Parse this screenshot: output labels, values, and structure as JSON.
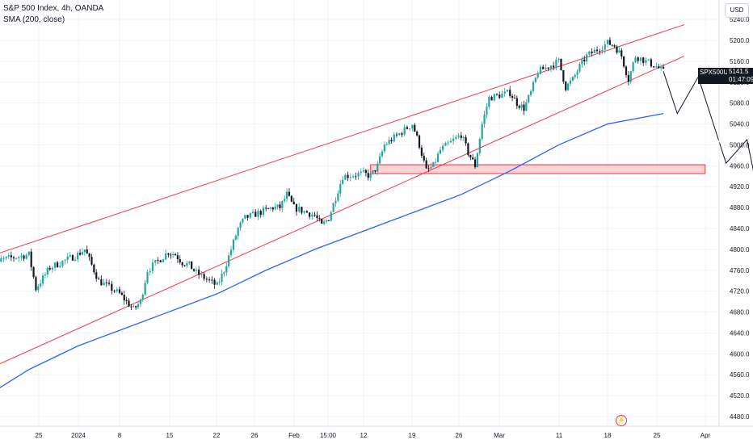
{
  "legend": {
    "title": "S&P 500 Index, 4h, OANDA",
    "indicator": "SMA (200, close)"
  },
  "currency_label": "USD",
  "last_price": {
    "symbol": "SPX500USD",
    "price": "5141.5",
    "countdown": "01:47:09"
  },
  "event_icon": "flash-icon",
  "colors": {
    "up": "#26a69a",
    "down": "#131722",
    "sma": "#2962ff",
    "channel": "#f23645",
    "zone_fill": "#f8c8cc",
    "projection": "#131722"
  },
  "chart_data": {
    "type": "candlestick",
    "title": "S&P 500 Index, 4h, OANDA",
    "y_scale": "linear",
    "ylim": [
      4460,
      5240
    ],
    "y_ticks": [
      4480,
      4520,
      4560,
      4600,
      4640,
      4680,
      4720,
      4760,
      4800,
      4840,
      4880,
      4920,
      4960,
      5000,
      5040,
      5080,
      5120,
      5160,
      5200,
      5240
    ],
    "y_tick_labels": [
      "4480.0",
      "4520.0",
      "4560.0",
      "4600.0",
      "4640.0",
      "4680.0",
      "4720.0",
      "4760.0",
      "4800.0",
      "4840.0",
      "4880.0",
      "4920.0",
      "4960.0",
      "5000.0",
      "5040.0",
      "5080.0",
      "5120.0",
      "5160.0",
      "5200.0",
      "5240.0"
    ],
    "x_tick_labels": [
      "25",
      "2024",
      "8",
      "15",
      "22",
      "26",
      "Feb",
      "15:00",
      "12",
      "19",
      "26",
      "Mar",
      "11",
      "18",
      "25",
      "Apr"
    ],
    "price_path": [
      [
        "2023-12-20",
        4740
      ],
      [
        "2023-12-21",
        4755
      ],
      [
        "2023-12-22",
        4780
      ],
      [
        "2023-12-26",
        4790
      ],
      [
        "2023-12-27",
        4725
      ],
      [
        "2023-12-28",
        4745
      ],
      [
        "2023-12-29",
        4765
      ],
      [
        "2024-01-02",
        4790
      ],
      [
        "2024-01-03",
        4800
      ],
      [
        "2024-01-04",
        4770
      ],
      [
        "2024-01-05",
        4740
      ],
      [
        "2024-01-08",
        4715
      ],
      [
        "2024-01-09",
        4700
      ],
      [
        "2024-01-10",
        4685
      ],
      [
        "2024-01-11",
        4700
      ],
      [
        "2024-01-12",
        4760
      ],
      [
        "2024-01-15",
        4795
      ],
      [
        "2024-01-16",
        4790
      ],
      [
        "2024-01-17",
        4775
      ],
      [
        "2024-01-18",
        4770
      ],
      [
        "2024-01-19",
        4755
      ],
      [
        "2024-01-22",
        4730
      ],
      [
        "2024-01-23",
        4760
      ],
      [
        "2024-01-24",
        4800
      ],
      [
        "2024-01-25",
        4840
      ],
      [
        "2024-01-26",
        4860
      ],
      [
        "2024-01-29",
        4875
      ],
      [
        "2024-01-30",
        4880
      ],
      [
        "2024-01-31",
        4880
      ],
      [
        "2024-02-01",
        4905
      ],
      [
        "2024-02-02",
        4880
      ],
      [
        "2024-02-05",
        4865
      ],
      [
        "2024-02-06",
        4845
      ],
      [
        "2024-02-07",
        4860
      ],
      [
        "2024-02-08",
        4900
      ],
      [
        "2024-02-09",
        4940
      ],
      [
        "2024-02-12",
        4945
      ],
      [
        "2024-02-13",
        4940
      ],
      [
        "2024-02-14",
        4960
      ],
      [
        "2024-02-15",
        5000
      ],
      [
        "2024-02-16",
        5010
      ],
      [
        "2024-02-19",
        5040
      ],
      [
        "2024-02-20",
        5000
      ],
      [
        "2024-02-21",
        4950
      ],
      [
        "2024-02-22",
        4960
      ],
      [
        "2024-02-23",
        4990
      ],
      [
        "2024-02-26",
        5020
      ],
      [
        "2024-02-27",
        4985
      ],
      [
        "2024-02-28",
        4960
      ],
      [
        "2024-02-29",
        5040
      ],
      [
        "2024-03-01",
        5090
      ],
      [
        "2024-03-04",
        5100
      ],
      [
        "2024-03-05",
        5080
      ],
      [
        "2024-03-06",
        5070
      ],
      [
        "2024-03-07",
        5100
      ],
      [
        "2024-03-08",
        5140
      ],
      [
        "2024-03-11",
        5160
      ],
      [
        "2024-03-12",
        5110
      ],
      [
        "2024-03-13",
        5125
      ],
      [
        "2024-03-14",
        5150
      ],
      [
        "2024-03-15",
        5170
      ],
      [
        "2024-03-18",
        5195
      ],
      [
        "2024-03-19",
        5190
      ],
      [
        "2024-03-20",
        5170
      ],
      [
        "2024-03-21",
        5125
      ],
      [
        "2024-03-22",
        5170
      ],
      [
        "2024-03-25",
        5150
      ],
      [
        "2024-03-26",
        5140
      ]
    ],
    "sma_200_path": [
      [
        "2023-12-20",
        4520
      ],
      [
        "2023-12-26",
        4570
      ],
      [
        "2024-01-02",
        4615
      ],
      [
        "2024-01-08",
        4645
      ],
      [
        "2024-01-15",
        4680
      ],
      [
        "2024-01-22",
        4715
      ],
      [
        "2024-01-29",
        4760
      ],
      [
        "2024-02-05",
        4800
      ],
      [
        "2024-02-12",
        4835
      ],
      [
        "2024-02-19",
        4870
      ],
      [
        "2024-02-26",
        4905
      ],
      [
        "2024-03-04",
        4950
      ],
      [
        "2024-03-11",
        5000
      ],
      [
        "2024-03-18",
        5040
      ],
      [
        "2024-03-26",
        5060
      ]
    ],
    "channel_upper": [
      [
        "2023-12-20",
        4785
      ],
      [
        "2024-03-29",
        5230
      ]
    ],
    "channel_lower": [
      [
        "2023-12-20",
        4570
      ],
      [
        "2024-03-29",
        5170
      ]
    ],
    "support_zone": {
      "from": "2024-02-13",
      "to": "2024-04-01",
      "low": 4945,
      "high": 4962
    },
    "projection_path": [
      [
        "2024-03-26",
        5141
      ],
      [
        "2024-03-28",
        5060
      ],
      [
        "2024-03-31",
        5130
      ],
      [
        "2024-04-04",
        4965
      ],
      [
        "2024-04-07",
        5010
      ],
      [
        "2024-04-09",
        4880
      ]
    ]
  }
}
